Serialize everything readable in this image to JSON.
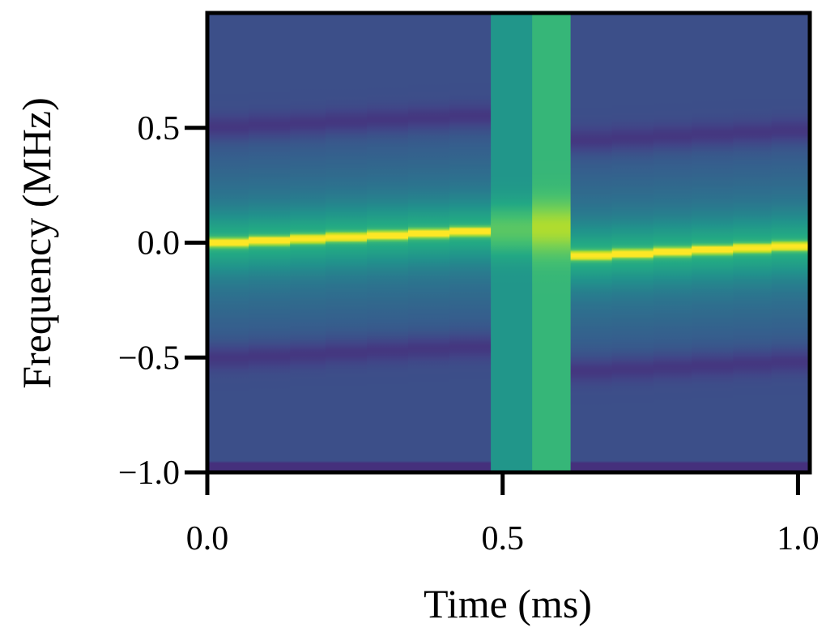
{
  "chart_data": {
    "type": "heatmap",
    "title": "",
    "xlabel": "Time (ms)",
    "ylabel": "Frequency (MHz)",
    "xlim": [
      0.0,
      1.02
    ],
    "ylim": [
      -1.0,
      1.0
    ],
    "x_ticks": [
      0.0,
      0.5,
      1.0
    ],
    "x_tick_labels": [
      "0.0",
      "0.5",
      "1.0"
    ],
    "y_ticks": [
      -1.0,
      -0.5,
      0.0,
      0.5
    ],
    "y_tick_labels": [
      "−1.0",
      "−0.5",
      "0.0",
      "0.5"
    ],
    "colormap": "viridis",
    "grid": false,
    "legend": "none",
    "frames": [
      {
        "t0": 0.0,
        "t1": 0.07,
        "kind": "tone",
        "peak_freq": 0.0,
        "floor": 0.42
      },
      {
        "t0": 0.07,
        "t1": 0.14,
        "kind": "tone",
        "peak_freq": 0.008,
        "floor": 0.42
      },
      {
        "t0": 0.14,
        "t1": 0.2,
        "kind": "tone",
        "peak_freq": 0.016,
        "floor": 0.42
      },
      {
        "t0": 0.2,
        "t1": 0.27,
        "kind": "tone",
        "peak_freq": 0.024,
        "floor": 0.42
      },
      {
        "t0": 0.27,
        "t1": 0.34,
        "kind": "tone",
        "peak_freq": 0.032,
        "floor": 0.42
      },
      {
        "t0": 0.34,
        "t1": 0.41,
        "kind": "tone",
        "peak_freq": 0.04,
        "floor": 0.42
      },
      {
        "t0": 0.41,
        "t1": 0.48,
        "kind": "tone",
        "peak_freq": 0.048,
        "floor": 0.42
      },
      {
        "t0": 0.48,
        "t1": 0.55,
        "kind": "tone",
        "peak_freq": 0.056,
        "floor": 0.55,
        "flat_level": 0.52
      },
      {
        "t0": 0.55,
        "t1": 0.615,
        "kind": "tone",
        "peak_freq": 0.064,
        "floor": 0.66,
        "flat_level": 0.66
      },
      {
        "t0": 0.615,
        "t1": 0.685,
        "kind": "tone",
        "peak_freq": -0.056,
        "floor": 0.42
      },
      {
        "t0": 0.685,
        "t1": 0.755,
        "kind": "tone",
        "peak_freq": -0.048,
        "floor": 0.42
      },
      {
        "t0": 0.755,
        "t1": 0.82,
        "kind": "tone",
        "peak_freq": -0.04,
        "floor": 0.42
      },
      {
        "t0": 0.82,
        "t1": 0.89,
        "kind": "tone",
        "peak_freq": -0.032,
        "floor": 0.42
      },
      {
        "t0": 0.89,
        "t1": 0.955,
        "kind": "tone",
        "peak_freq": -0.024,
        "floor": 0.42
      },
      {
        "t0": 0.955,
        "t1": 1.02,
        "kind": "tone",
        "peak_freq": -0.016,
        "floor": 0.42
      }
    ]
  }
}
